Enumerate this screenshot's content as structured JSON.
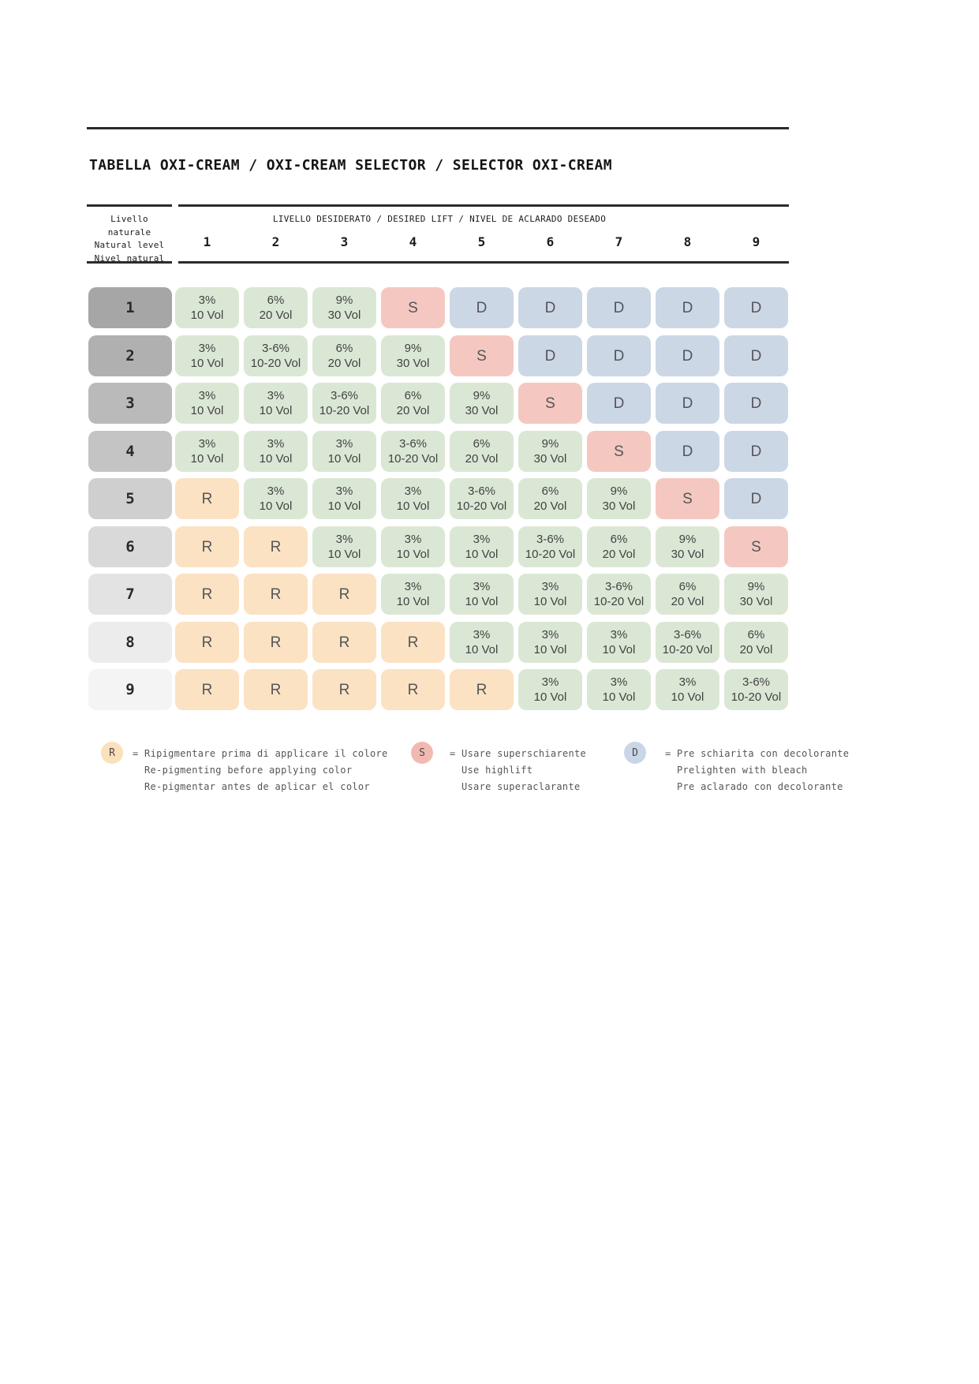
{
  "title": "TABELLA OXI-CREAM / OXI-CREAM SELECTOR / SELECTOR OXI-CREAM",
  "table": {
    "row_axis": [
      "Livello naturale",
      "Natural level",
      "Nivel natural"
    ],
    "col_axis": "LIVELLO DESIDERATO / DESIRED LIFT / NIVEL DE ACLARADO DESEADO",
    "columns": [
      "1",
      "2",
      "3",
      "4",
      "5",
      "6",
      "7",
      "8",
      "9"
    ],
    "rows": [
      {
        "level": "1",
        "cells": [
          "3%|10 Vol",
          "6%|20 Vol",
          "9%|30 Vol",
          "S",
          "D",
          "D",
          "D",
          "D",
          "D"
        ]
      },
      {
        "level": "2",
        "cells": [
          "3%|10 Vol",
          "3-6%|10-20 Vol",
          "6%|20 Vol",
          "9%|30 Vol",
          "S",
          "D",
          "D",
          "D",
          "D"
        ]
      },
      {
        "level": "3",
        "cells": [
          "3%|10 Vol",
          "3%|10 Vol",
          "3-6%|10-20 Vol",
          "6%|20 Vol",
          "9%|30 Vol",
          "S",
          "D",
          "D",
          "D"
        ]
      },
      {
        "level": "4",
        "cells": [
          "3%|10 Vol",
          "3%|10 Vol",
          "3%|10 Vol",
          "3-6%|10-20 Vol",
          "6%|20 Vol",
          "9%|30 Vol",
          "S",
          "D",
          "D"
        ]
      },
      {
        "level": "5",
        "cells": [
          "R",
          "3%|10 Vol",
          "3%|10 Vol",
          "3%|10 Vol",
          "3-6%|10-20 Vol",
          "6%|20 Vol",
          "9%|30 Vol",
          "S",
          "D"
        ]
      },
      {
        "level": "6",
        "cells": [
          "R",
          "R",
          "3%|10 Vol",
          "3%|10 Vol",
          "3%|10 Vol",
          "3-6%|10-20 Vol",
          "6%|20 Vol",
          "9%|30 Vol",
          "S"
        ]
      },
      {
        "level": "7",
        "cells": [
          "R",
          "R",
          "R",
          "3%|10 Vol",
          "3%|10 Vol",
          "3%|10 Vol",
          "3-6%|10-20 Vol",
          "6%|20 Vol",
          "9%|30 Vol"
        ]
      },
      {
        "level": "8",
        "cells": [
          "R",
          "R",
          "R",
          "R",
          "3%|10 Vol",
          "3%|10 Vol",
          "3%|10 Vol",
          "3-6%|10-20 Vol",
          "6%|20 Vol"
        ]
      },
      {
        "level": "9",
        "cells": [
          "R",
          "R",
          "R",
          "R",
          "R",
          "3%|10 Vol",
          "3%|10 Vol",
          "3%|10 Vol",
          "3-6%|10-20 Vol"
        ]
      }
    ]
  },
  "legend": [
    {
      "symbol": "R",
      "lines": [
        "= Ripigmentare prima di applicare il colore",
        "Re-pigmenting before applying color",
        "Re-pigmentar antes de aplicar el color"
      ]
    },
    {
      "symbol": "S",
      "lines": [
        "= Usare superschiarente",
        "Use highlift",
        "Usare superaclarante"
      ]
    },
    {
      "symbol": "D",
      "lines": [
        "= Pre schiarita con decolorante",
        "Prelighten with bleach",
        "Pre aclarado con decolorante"
      ]
    }
  ],
  "colors": {
    "strength_cell": "#dbe7d5",
    "S_cell": "#f4c8c1",
    "D_cell": "#ccd7e6",
    "R_cell": "#fbe2c3",
    "S_legend": "#f2b9b1",
    "D_legend": "#c9d6e8",
    "R_legend": "#fbe0bc",
    "row_label_shades": [
      "#a6a6a6",
      "#b0b0b0",
      "#bababa",
      "#c4c4c4",
      "#cfcfcf",
      "#d9d9d9",
      "#e3e3e3",
      "#ececec",
      "#f4f4f4"
    ]
  }
}
